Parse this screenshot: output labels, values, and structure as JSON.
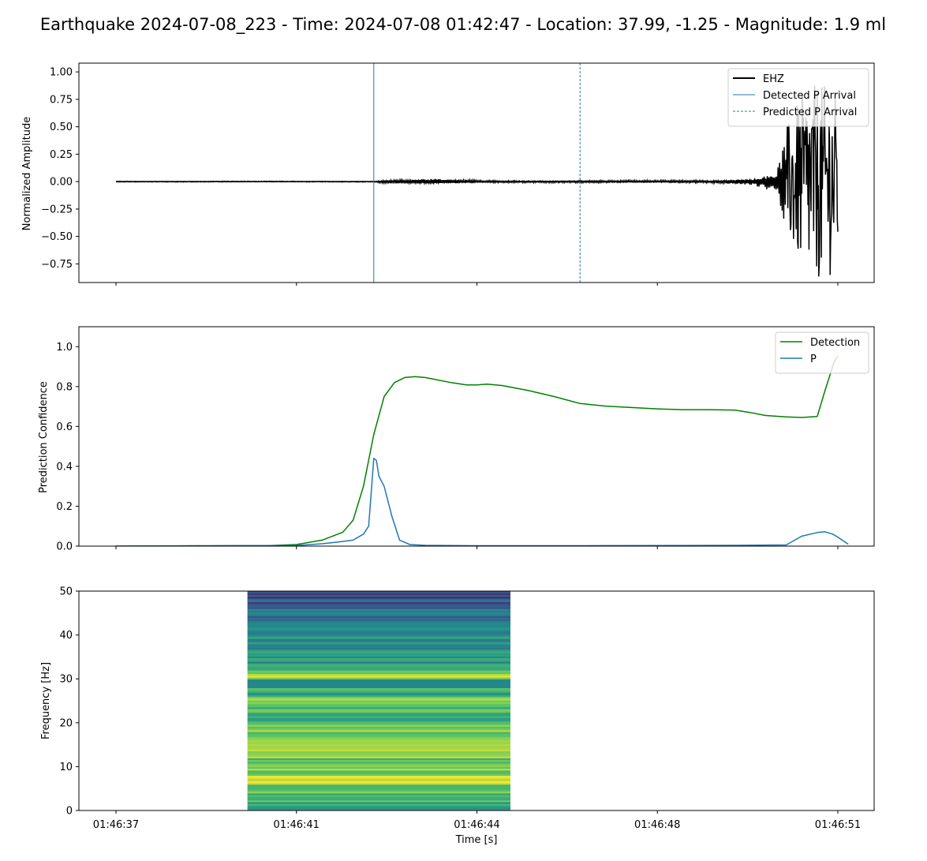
{
  "figure": {
    "title": "Earthquake 2024-07-08_223 - Time: 2024-07-08 01:42:47 - Location: 37.99, -1.25 - Magnitude: 1.9 ml"
  },
  "colors": {
    "waveform": "#000000",
    "detected_p": "#1f77b4",
    "predicted_p": "#1f77b4",
    "detection": "#008000",
    "p_prob": "#1f77b4",
    "spectrogram_cmap": "viridis"
  },
  "chart_data": [
    {
      "type": "line",
      "panel": "waveform",
      "ylabel": "Normalized Amplitude",
      "xlim": [
        0,
        14.7
      ],
      "ylim": [
        -0.92,
        1.08
      ],
      "yticks": [
        -0.75,
        -0.5,
        -0.25,
        0.0,
        0.25,
        0.5,
        0.75,
        1.0
      ],
      "ytick_labels": [
        "−0.75",
        "−0.50",
        "−0.25",
        "0.00",
        "0.25",
        "0.50",
        "0.75",
        "1.00"
      ],
      "legend": {
        "placement": "top-right",
        "entries": [
          "EHZ",
          "Detected P Arrival",
          "Predicted P Arrival"
        ]
      },
      "series": [
        {
          "name": "EHZ",
          "kind": "waveform",
          "t_start": 0.0,
          "t_end": 14.0,
          "noise_amp": 0.004,
          "p_amp": 0.02,
          "p_onset": 5.0,
          "envelope": [
            [
              0.0,
              0.004
            ],
            [
              4.99,
              0.004
            ],
            [
              5.2,
              0.016
            ],
            [
              6.2,
              0.025
            ],
            [
              7.0,
              0.012
            ],
            [
              8.0,
              0.01
            ],
            [
              11.5,
              0.012
            ],
            [
              12.3,
              0.03
            ],
            [
              12.8,
              0.1
            ],
            [
              13.0,
              0.5
            ],
            [
              13.3,
              0.8
            ],
            [
              13.6,
              0.9
            ],
            [
              13.9,
              0.85
            ],
            [
              14.0,
              0.7
            ]
          ]
        }
      ],
      "markers": [
        {
          "name": "Detected P Arrival",
          "t": 5.0,
          "style": "solid"
        },
        {
          "name": "Predicted P Arrival",
          "t": 9.0,
          "style": "dashed"
        }
      ]
    },
    {
      "type": "line",
      "panel": "probabilities",
      "ylabel": "Prediction Confidence",
      "xlim": [
        0,
        14.7
      ],
      "ylim": [
        0,
        1.1
      ],
      "yticks": [
        0.0,
        0.2,
        0.4,
        0.6,
        0.8,
        1.0
      ],
      "ytick_labels": [
        "0.0",
        "0.2",
        "0.4",
        "0.6",
        "0.8",
        "1.0"
      ],
      "legend": {
        "placement": "top-right",
        "entries": [
          "Detection",
          "P"
        ]
      },
      "series": [
        {
          "name": "Detection",
          "points": [
            [
              0,
              0
            ],
            [
              3.0,
              0.003
            ],
            [
              3.5,
              0.008
            ],
            [
              4.0,
              0.03
            ],
            [
              4.4,
              0.07
            ],
            [
              4.6,
              0.13
            ],
            [
              4.8,
              0.3
            ],
            [
              5.0,
              0.56
            ],
            [
              5.2,
              0.75
            ],
            [
              5.4,
              0.82
            ],
            [
              5.6,
              0.845
            ],
            [
              5.8,
              0.85
            ],
            [
              6.0,
              0.845
            ],
            [
              6.5,
              0.82
            ],
            [
              6.8,
              0.808
            ],
            [
              7.0,
              0.808
            ],
            [
              7.2,
              0.812
            ],
            [
              7.5,
              0.805
            ],
            [
              8.0,
              0.78
            ],
            [
              8.5,
              0.75
            ],
            [
              9.0,
              0.715
            ],
            [
              9.5,
              0.702
            ],
            [
              10.0,
              0.695
            ],
            [
              10.5,
              0.688
            ],
            [
              11.0,
              0.684
            ],
            [
              11.5,
              0.684
            ],
            [
              12.0,
              0.682
            ],
            [
              12.3,
              0.67
            ],
            [
              12.6,
              0.655
            ],
            [
              13.0,
              0.648
            ],
            [
              13.3,
              0.645
            ],
            [
              13.6,
              0.65
            ],
            [
              13.8,
              0.655
            ],
            [
              13.9,
              0.65
            ],
            [
              14.0,
              0.64
            ],
            [
              14.1,
              0.66
            ],
            [
              14.3,
              0.74
            ],
            [
              14.5,
              0.83
            ],
            [
              14.65,
              0.92
            ]
          ],
          "t_end": 14.0,
          "tail": [
            0.92,
            0.96,
            0.98,
            0.99,
            0.99,
            0.985,
            0.97,
            0.95
          ]
        },
        {
          "name": "P",
          "points": [
            [
              0,
              0
            ],
            [
              3.5,
              0.003
            ],
            [
              4.0,
              0.012
            ],
            [
              4.3,
              0.02
            ],
            [
              4.6,
              0.03
            ],
            [
              4.8,
              0.06
            ],
            [
              4.9,
              0.1
            ],
            [
              5.0,
              0.44
            ],
            [
              5.05,
              0.43
            ],
            [
              5.1,
              0.35
            ],
            [
              5.2,
              0.3
            ],
            [
              5.35,
              0.15
            ],
            [
              5.5,
              0.03
            ],
            [
              5.7,
              0.008
            ],
            [
              6.0,
              0.004
            ],
            [
              7.0,
              0.002
            ],
            [
              9.0,
              0.002
            ],
            [
              12.0,
              0.004
            ],
            [
              13.0,
              0.006
            ]
          ]
        }
      ]
    },
    {
      "type": "heatmap",
      "panel": "spectrogram",
      "ylabel": "Frequency [Hz]",
      "xlabel": "Time [s]",
      "xlim": [
        0,
        14.7
      ],
      "ylim": [
        0,
        50
      ],
      "yticks": [
        0,
        10,
        20,
        30,
        40,
        50
      ],
      "ytick_labels": [
        "0",
        "10",
        "20",
        "30",
        "40",
        "50"
      ],
      "x_extent": [
        2.55,
        7.65
      ],
      "bands": [
        {
          "f": [
            0,
            2
          ],
          "v": 0.55
        },
        {
          "f": [
            2,
            4
          ],
          "v": 0.65
        },
        {
          "f": [
            4,
            6
          ],
          "v": 0.75
        },
        {
          "f": [
            6,
            8
          ],
          "v": 0.95
        },
        {
          "f": [
            8,
            10
          ],
          "v": 0.8
        },
        {
          "f": [
            10,
            12
          ],
          "v": 0.7
        },
        {
          "f": [
            12,
            14
          ],
          "v": 0.85
        },
        {
          "f": [
            14,
            16
          ],
          "v": 0.95
        },
        {
          "f": [
            16,
            18
          ],
          "v": 0.75
        },
        {
          "f": [
            18,
            20
          ],
          "v": 0.8
        },
        {
          "f": [
            20,
            22
          ],
          "v": 0.6
        },
        {
          "f": [
            22,
            24
          ],
          "v": 0.7
        },
        {
          "f": [
            24,
            26
          ],
          "v": 0.8
        },
        {
          "f": [
            26,
            28
          ],
          "v": 0.6
        },
        {
          "f": [
            28,
            30
          ],
          "v": 0.55
        },
        {
          "f": [
            30,
            32
          ],
          "v": 0.85
        },
        {
          "f": [
            32,
            34
          ],
          "v": 0.55
        },
        {
          "f": [
            34,
            36
          ],
          "v": 0.5
        },
        {
          "f": [
            36,
            38
          ],
          "v": 0.5
        },
        {
          "f": [
            38,
            40
          ],
          "v": 0.48
        },
        {
          "f": [
            40,
            42
          ],
          "v": 0.45
        },
        {
          "f": [
            42,
            44
          ],
          "v": 0.42
        },
        {
          "f": [
            44,
            46
          ],
          "v": 0.35
        },
        {
          "f": [
            46,
            48
          ],
          "v": 0.3
        },
        {
          "f": [
            48,
            50
          ],
          "v": 0.25
        }
      ]
    }
  ],
  "xaxis": {
    "ticks": [
      0,
      3.5,
      7.0,
      10.5,
      14.0
    ],
    "tick_labels": [
      "01:46:37",
      "01:46:41",
      "01:46:44",
      "01:46:48",
      "01:46:51"
    ]
  }
}
